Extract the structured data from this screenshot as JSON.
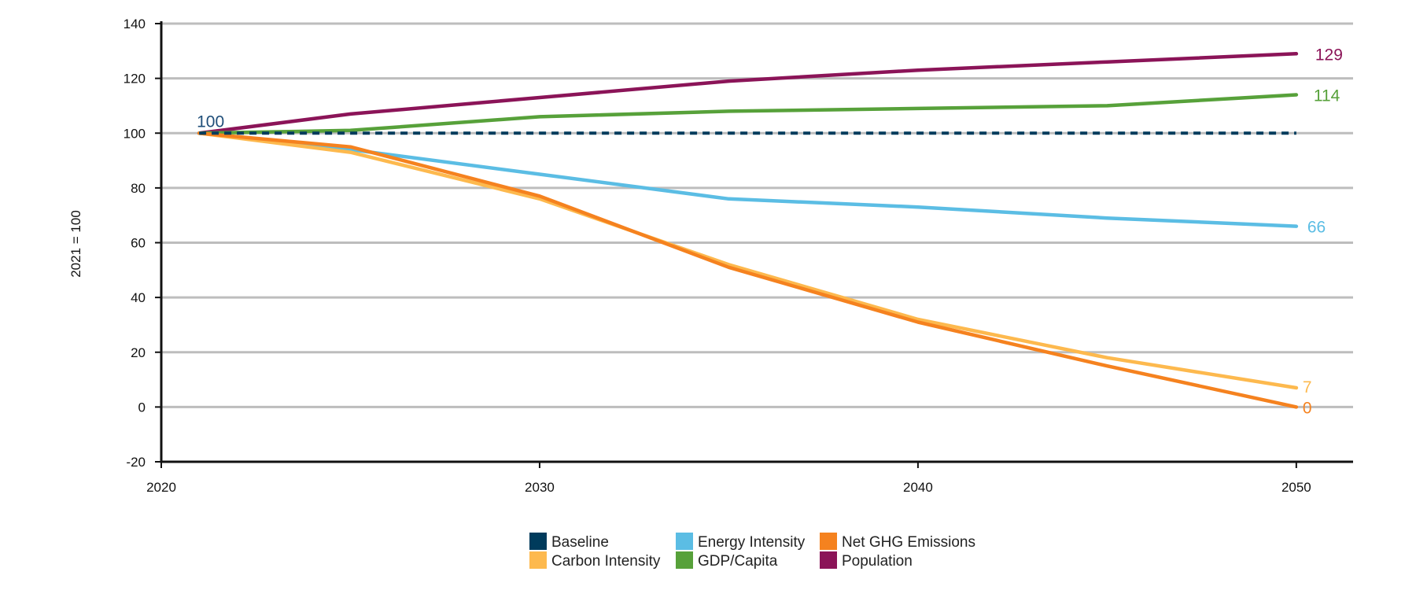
{
  "chart_data": {
    "type": "line",
    "ylabel": "2021 = 100",
    "xlabel": "",
    "x_ticks": [
      "2020",
      "2030",
      "2040",
      "2050"
    ],
    "xlim": [
      2020,
      2051.5
    ],
    "y_ticks": [
      "140",
      "120",
      "100",
      "80",
      "60",
      "40",
      "20",
      "0",
      "-20"
    ],
    "ylim": [
      -20,
      140
    ],
    "grid": "horizontal",
    "legend_position": "bottom",
    "series": [
      {
        "name": "Baseline",
        "color": "#003b5c",
        "dashed": true,
        "x": [
          2021,
          2025,
          2030,
          2035,
          2040,
          2045,
          2050
        ],
        "values": [
          100,
          100,
          100,
          100,
          100,
          100,
          100
        ]
      },
      {
        "name": "Energy Intensity",
        "color": "#5bbde4",
        "dashed": false,
        "x": [
          2021,
          2025,
          2030,
          2035,
          2040,
          2045,
          2050
        ],
        "values": [
          100,
          94,
          85,
          76,
          73,
          69,
          66
        ]
      },
      {
        "name": "Net GHG Emissions",
        "color": "#f5821f",
        "dashed": false,
        "x": [
          2021,
          2025,
          2030,
          2035,
          2040,
          2045,
          2050
        ],
        "values": [
          100,
          95,
          77,
          51,
          31,
          15,
          0
        ]
      },
      {
        "name": "Carbon Intensity",
        "color": "#fdb94e",
        "dashed": false,
        "x": [
          2021,
          2025,
          2030,
          2035,
          2040,
          2045,
          2050
        ],
        "values": [
          100,
          93,
          76,
          52,
          32,
          18,
          7
        ]
      },
      {
        "name": "GDP/Capita",
        "color": "#57a13a",
        "dashed": false,
        "x": [
          2021,
          2025,
          2030,
          2035,
          2040,
          2045,
          2050
        ],
        "values": [
          100,
          101,
          106,
          108,
          109,
          110,
          114
        ]
      },
      {
        "name": "Population",
        "color": "#8b1458",
        "dashed": false,
        "x": [
          2021,
          2025,
          2030,
          2035,
          2040,
          2045,
          2050
        ],
        "values": [
          100,
          107,
          113,
          119,
          123,
          126,
          129
        ]
      }
    ],
    "annotations": [
      {
        "text": "100",
        "x": 2021,
        "y": 100,
        "color": "#1f4e79"
      },
      {
        "text": "129",
        "x": 2050,
        "y": 129,
        "color": "#8b1458"
      },
      {
        "text": "114",
        "x": 2050,
        "y": 114,
        "color": "#57a13a"
      },
      {
        "text": "66",
        "x": 2050,
        "y": 66,
        "color": "#5bbde4"
      },
      {
        "text": "7",
        "x": 2050,
        "y": 7,
        "color": "#fdb94e"
      },
      {
        "text": "0",
        "x": 2050,
        "y": 0,
        "color": "#f5821f"
      }
    ]
  }
}
